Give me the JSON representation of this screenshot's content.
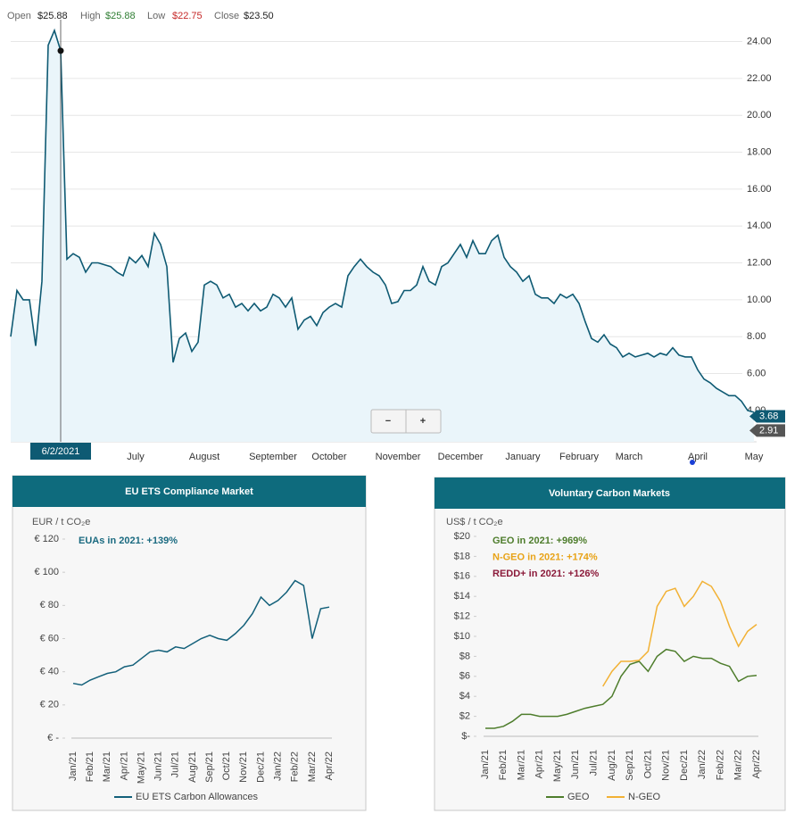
{
  "chart_data": [
    {
      "type": "area",
      "ohlc": [
        {
          "label": "Open",
          "value": "$25.88",
          "color": "#222222"
        },
        {
          "label": "High",
          "value": "$25.88",
          "color": "#2e7d32"
        },
        {
          "label": "Low",
          "value": "$22.75",
          "color": "#c62828"
        },
        {
          "label": "Close",
          "value": "$23.50",
          "color": "#222222"
        }
      ],
      "categories": [
        null,
        null,
        null,
        null,
        null,
        null,
        null,
        null,
        null,
        null,
        null,
        null,
        null,
        null,
        null,
        null,
        null,
        null,
        null,
        null,
        "July",
        null,
        null,
        null,
        null,
        null,
        null,
        null,
        null,
        null,
        null,
        "August",
        null,
        null,
        null,
        null,
        null,
        null,
        null,
        null,
        null,
        null,
        "September",
        null,
        null,
        null,
        null,
        null,
        null,
        null,
        null,
        "October",
        null,
        null,
        null,
        null,
        null,
        null,
        null,
        null,
        null,
        null,
        "November",
        null,
        null,
        null,
        null,
        null,
        null,
        null,
        null,
        null,
        "December",
        null,
        null,
        null,
        null,
        null,
        null,
        null,
        null,
        null,
        "January",
        null,
        null,
        null,
        null,
        null,
        null,
        null,
        null,
        "February",
        null,
        null,
        null,
        null,
        null,
        null,
        null,
        "March",
        null,
        null,
        null,
        null,
        null,
        null,
        null,
        null,
        null,
        null,
        "April",
        null,
        null,
        null,
        null,
        null,
        null,
        null,
        null,
        "May"
      ],
      "values": [
        8.0,
        10.5,
        10.0,
        10.0,
        7.5,
        11.0,
        23.8,
        24.6,
        23.5,
        12.2,
        12.5,
        12.3,
        11.5,
        12.0,
        12.0,
        11.9,
        11.8,
        11.5,
        11.3,
        12.3,
        12.0,
        12.4,
        11.8,
        13.6,
        13.0,
        11.8,
        6.6,
        7.9,
        8.2,
        7.2,
        7.7,
        10.8,
        11.0,
        10.8,
        10.1,
        10.3,
        9.6,
        9.8,
        9.4,
        9.8,
        9.4,
        9.6,
        10.3,
        10.1,
        9.6,
        10.1,
        8.4,
        8.9,
        9.1,
        8.6,
        9.3,
        9.6,
        9.8,
        9.6,
        11.3,
        11.8,
        12.2,
        11.8,
        11.5,
        11.3,
        10.8,
        9.8,
        9.9,
        10.5,
        10.5,
        10.8,
        11.8,
        11.0,
        10.8,
        11.8,
        12.0,
        12.5,
        13.0,
        12.3,
        13.2,
        12.5,
        12.5,
        13.2,
        13.5,
        12.3,
        11.8,
        11.5,
        11.0,
        11.3,
        10.3,
        10.1,
        10.1,
        9.8,
        10.3,
        10.1,
        10.3,
        9.8,
        8.8,
        7.9,
        7.7,
        8.1,
        7.6,
        7.4,
        6.9,
        7.1,
        6.9,
        7.0,
        7.1,
        6.9,
        7.1,
        7.0,
        7.4,
        7.0,
        6.9,
        6.9,
        6.2,
        5.7,
        5.5,
        5.2,
        5.0,
        4.8,
        4.8,
        4.5,
        4.0,
        3.9
      ],
      "color": "#0e5a73",
      "fill": "#eaf5fa",
      "ylim": [
        2.3,
        24.8
      ],
      "yticks": [
        {
          "value": 4,
          "label": "4.00"
        },
        {
          "value": 6,
          "label": "6.00"
        },
        {
          "value": 8,
          "label": "8.00"
        },
        {
          "value": 10,
          "label": "10.00"
        },
        {
          "value": 12,
          "label": "12.00"
        },
        {
          "value": 14,
          "label": "14.00"
        },
        {
          "value": 16,
          "label": "16.00"
        },
        {
          "value": 18,
          "label": "18.00"
        },
        {
          "value": 20,
          "label": "20.00"
        },
        {
          "value": 22,
          "label": "22.00"
        },
        {
          "value": 24,
          "label": "24.00"
        }
      ],
      "grid": true,
      "crosshair": {
        "label": "6/2/2021",
        "value": 23.5
      },
      "price_tags": [
        {
          "value": 3.68,
          "color": "#0e5a73"
        },
        {
          "value": 2.91,
          "color": "#555555"
        }
      ],
      "zoom_buttons": [
        "−",
        "+"
      ]
    },
    {
      "type": "line",
      "title": "EU ETS Compliance Market",
      "y_label": "EUR / t CO₂e",
      "categories": [
        "Jan/21",
        null,
        "Feb/21",
        null,
        "Mar/21",
        null,
        "Apr/21",
        null,
        "May/21",
        null,
        "Jun/21",
        null,
        "Jul/21",
        null,
        "Aug/21",
        null,
        "Sep/21",
        null,
        "Oct/21",
        null,
        "Nov/21",
        null,
        "Dec/21",
        null,
        "Jan/22",
        null,
        "Feb/22",
        null,
        "Mar/22",
        null,
        "Apr/22"
      ],
      "series": [
        {
          "name": "EU ETS Carbon Allowances",
          "color": "#13607a",
          "values": [
            33,
            32,
            35,
            37,
            39,
            40,
            43,
            44,
            48,
            52,
            53,
            52,
            55,
            54,
            57,
            60,
            62,
            60,
            59,
            63,
            68,
            75,
            85,
            80,
            83,
            88,
            95,
            92,
            60,
            78,
            79
          ]
        }
      ],
      "annotations": [
        {
          "text": "EUAs in 2021: +139%",
          "color": "#1a6a80"
        }
      ],
      "ylim": [
        0,
        120
      ],
      "yticks": [
        {
          "value": 0,
          "label": "€ -"
        },
        {
          "value": 20,
          "label": "€ 20"
        },
        {
          "value": 40,
          "label": "€ 40"
        },
        {
          "value": 60,
          "label": "€ 60"
        },
        {
          "value": 80,
          "label": "€ 80"
        },
        {
          "value": 100,
          "label": "€ 100"
        },
        {
          "value": 120,
          "label": "€ 120"
        }
      ]
    },
    {
      "type": "line",
      "title": "Voluntary Carbon Markets",
      "y_label": "US$ / t CO₂e",
      "categories": [
        "Jan/21",
        null,
        "Feb/21",
        null,
        "Mar/21",
        null,
        "Apr/21",
        null,
        "May/21",
        null,
        "Jun/21",
        null,
        "Jul/21",
        null,
        "Aug/21",
        null,
        "Sep/21",
        null,
        "Oct/21",
        null,
        "Nov/21",
        null,
        "Dec/21",
        null,
        "Jan/22",
        null,
        "Feb/22",
        null,
        "Mar/22",
        null,
        "Apr/22"
      ],
      "series": [
        {
          "name": "GEO",
          "color": "#4e7d2c",
          "values": [
            0.8,
            0.8,
            1.0,
            1.5,
            2.2,
            2.2,
            2.0,
            2.0,
            2.0,
            2.2,
            2.5,
            2.8,
            3.0,
            3.2,
            4.0,
            6.0,
            7.2,
            7.5,
            6.5,
            8.0,
            8.7,
            8.5,
            7.5,
            8.0,
            7.8,
            7.8,
            7.3,
            7.0,
            5.5,
            6.0,
            6.1
          ]
        },
        {
          "name": "N-GEO",
          "color": "#f2b134",
          "values": [
            null,
            null,
            null,
            null,
            null,
            null,
            null,
            null,
            null,
            null,
            null,
            null,
            null,
            5.0,
            6.5,
            7.5,
            7.5,
            7.6,
            8.5,
            13.0,
            14.5,
            14.8,
            13.0,
            14.0,
            15.5,
            15.0,
            13.5,
            11.0,
            9.0,
            10.5,
            11.2
          ]
        }
      ],
      "annotations": [
        {
          "text": "GEO in 2021: +969%",
          "color": "#4e7d2c"
        },
        {
          "text": "N-GEO in 2021: +174%",
          "color": "#e8a317"
        },
        {
          "text": "REDD+ in 2021: +126%",
          "color": "#8b1a3a"
        }
      ],
      "ylim": [
        0,
        20
      ],
      "yticks": [
        {
          "value": 0,
          "label": "$-"
        },
        {
          "value": 2,
          "label": "$2"
        },
        {
          "value": 4,
          "label": "$4"
        },
        {
          "value": 6,
          "label": "$6"
        },
        {
          "value": 8,
          "label": "$8"
        },
        {
          "value": 10,
          "label": "$10"
        },
        {
          "value": 12,
          "label": "$12"
        },
        {
          "value": 14,
          "label": "$14"
        },
        {
          "value": 16,
          "label": "$16"
        },
        {
          "value": 18,
          "label": "$18"
        },
        {
          "value": 20,
          "label": "$20"
        }
      ]
    }
  ]
}
